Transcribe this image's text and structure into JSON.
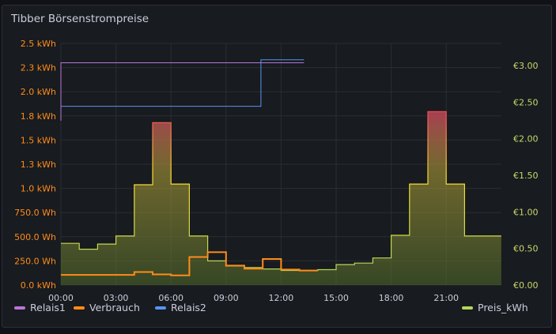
{
  "panel": {
    "title": "Tibber Börsenstrompreise"
  },
  "chart_data": {
    "type": "line",
    "title": "Tibber Börsenstrompreise",
    "x_ticks": [
      "00:00",
      "03:00",
      "06:00",
      "09:00",
      "12:00",
      "15:00",
      "18:00",
      "21:00"
    ],
    "left_axis": {
      "unit": "Wh",
      "ticks": [
        "0.0 kWh",
        "250.0 Wh",
        "500.0 Wh",
        "750.0 Wh",
        "1.0 kWh",
        "1.3 kWh",
        "1.5 kWh",
        "1.8 kWh",
        "2.0 kWh",
        "2.3 kWh",
        "2.5 kWh"
      ],
      "ylim": [
        0,
        2500
      ]
    },
    "right_axis": {
      "unit": "€",
      "ticks": [
        "€0.00",
        "€0.50",
        "€1.00",
        "€1.50",
        "€2.00",
        "€2.50",
        "€3.00"
      ],
      "ylim": [
        0,
        3.0
      ]
    },
    "grid": true,
    "legend_position": "bottom",
    "series": [
      {
        "name": "Preis_kWh",
        "axis": "right",
        "style": "step-area",
        "color": "#b5d65a",
        "points": [
          [
            0,
            0.57
          ],
          [
            1,
            0.49
          ],
          [
            2,
            0.56
          ],
          [
            3,
            0.67
          ],
          [
            4,
            1.37
          ],
          [
            5,
            2.22
          ],
          [
            6,
            1.38
          ],
          [
            7,
            0.67
          ],
          [
            8,
            0.33
          ],
          [
            9,
            0.27
          ],
          [
            10,
            0.24
          ],
          [
            11,
            0.22
          ],
          [
            12,
            0.2
          ],
          [
            13,
            0.2
          ],
          [
            14,
            0.21
          ],
          [
            15,
            0.28
          ],
          [
            16,
            0.3
          ],
          [
            17,
            0.37
          ],
          [
            18,
            0.68
          ],
          [
            19,
            1.38
          ],
          [
            20,
            2.37
          ],
          [
            21,
            1.38
          ],
          [
            22,
            0.67
          ],
          [
            23,
            0.67
          ]
        ]
      },
      {
        "name": "Verbrauch",
        "axis": "left",
        "style": "step",
        "color": "#ff8c1a",
        "points": [
          [
            0,
            105
          ],
          [
            1,
            105
          ],
          [
            2,
            105
          ],
          [
            3,
            105
          ],
          [
            4,
            135
          ],
          [
            5,
            110
          ],
          [
            6,
            100
          ],
          [
            7,
            290
          ],
          [
            8,
            340
          ],
          [
            9,
            200
          ],
          [
            10,
            170
          ],
          [
            11,
            270
          ],
          [
            12,
            160
          ],
          [
            13,
            150
          ]
        ]
      },
      {
        "name": "Relais1",
        "axis": "left",
        "style": "step",
        "color": "#b877d9",
        "points": [
          [
            0,
            1700
          ],
          [
            0,
            2300
          ],
          [
            13.25,
            2300
          ]
        ]
      },
      {
        "name": "Relais2",
        "axis": "left",
        "style": "step",
        "color": "#5794f2",
        "points": [
          [
            0,
            1850
          ],
          [
            10.9,
            1850
          ],
          [
            10.9,
            2330
          ],
          [
            13.25,
            2330
          ]
        ]
      }
    ]
  },
  "legend": [
    {
      "name": "Relais1",
      "color": "#b877d9"
    },
    {
      "name": "Verbrauch",
      "color": "#ff8c1a"
    },
    {
      "name": "Relais2",
      "color": "#5794f2"
    },
    {
      "name": "Preis_kWh",
      "color": "#b5d65a"
    }
  ]
}
